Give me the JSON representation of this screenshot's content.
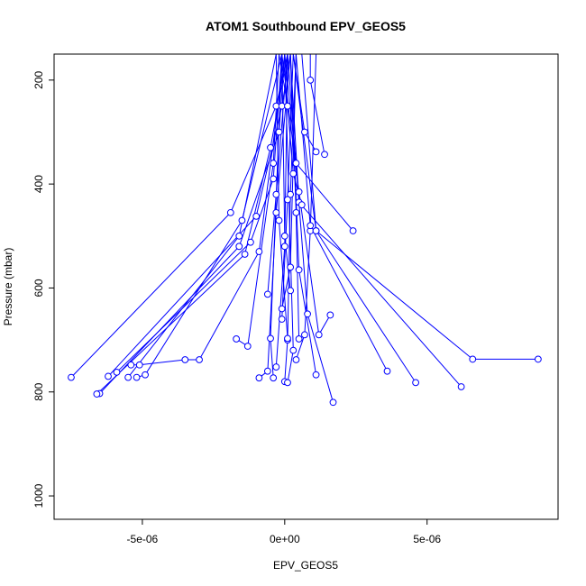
{
  "chart_data": {
    "type": "line",
    "title": "ATOM1 Southbound EPV_GEOS5",
    "xlabel": "EPV_GEOS5",
    "ylabel": "Pressure (mbar)",
    "xlim": [
      -8.1e-06,
      9.6e-06
    ],
    "ylim": [
      1045,
      150
    ],
    "y_inverted": true,
    "xticks": [
      {
        "value": -5e-06,
        "label": "-5e-06"
      },
      {
        "value": 0,
        "label": "0e+00"
      },
      {
        "value": 5e-06,
        "label": "5e-06"
      }
    ],
    "yticks": [
      {
        "value": 200,
        "label": "200"
      },
      {
        "value": 400,
        "label": "400"
      },
      {
        "value": 600,
        "label": "600"
      },
      {
        "value": 800,
        "label": "800"
      },
      {
        "value": 1000,
        "label": "1000"
      }
    ],
    "series_color": "#0000ff",
    "marker": "open-circle",
    "grid": false,
    "series": [
      {
        "x": [
          -7.5e-06,
          -1.9e-06,
          -3e-07,
          1e-07,
          3e-07
        ],
        "y": [
          772,
          455,
          250,
          150,
          100
        ]
      },
      {
        "x": [
          -6.5e-06,
          -1.6e-06,
          -2e-07,
          0.0
        ],
        "y": [
          803,
          520,
          300,
          150
        ]
      },
      {
        "x": [
          -6.6e-06,
          -1.4e-06,
          -5e-07,
          1e-07
        ],
        "y": [
          804,
          535,
          330,
          150
        ]
      },
      {
        "x": [
          -6.2e-06,
          -1e-06,
          -1e-07,
          2e-07
        ],
        "y": [
          770,
          462,
          250,
          150
        ]
      },
      {
        "x": [
          -5.9e-06,
          -1.2e-06,
          -4e-07,
          -1e-07
        ],
        "y": [
          762,
          512,
          390,
          150
        ]
      },
      {
        "x": [
          -5.4e-06,
          -5.1e-06,
          -3.5e-06,
          -3e-06,
          -9e-07,
          0.0
        ],
        "y": [
          748,
          748,
          738,
          738,
          530,
          150
        ]
      },
      {
        "x": [
          -5.5e-06,
          -1.6e-06,
          -3e-07
        ],
        "y": [
          772,
          500,
          150
        ]
      },
      {
        "x": [
          -5.2e-06,
          -4.9e-06,
          -1.5e-06,
          -1e-07
        ],
        "y": [
          772,
          767,
          470,
          150
        ]
      },
      {
        "x": [
          -1.7e-06,
          -1.3e-06,
          -4e-07,
          -2e-07
        ],
        "y": [
          698,
          712,
          360,
          150
        ]
      },
      {
        "x": [
          -9e-07,
          -6e-07,
          -3e-07,
          2e-07
        ],
        "y": [
          773,
          760,
          455,
          150
        ]
      },
      {
        "x": [
          -4e-07,
          -5e-07,
          -1e-07
        ],
        "y": [
          773,
          697,
          150
        ]
      },
      {
        "x": [
          0.0,
          1e-07,
          2e-07,
          4e-07
        ],
        "y": [
          780,
          700,
          420,
          150
        ]
      },
      {
        "x": [
          1e-07,
          3e-07,
          0.0
        ],
        "y": [
          782,
          720,
          150
        ]
      },
      {
        "x": [
          4e-07,
          7e-07,
          9e-07,
          1.1e-06
        ],
        "y": [
          738,
          690,
          490,
          150
        ]
      },
      {
        "x": [
          1.1e-06,
          5e-07,
          2e-07
        ],
        "y": [
          767,
          565,
          150
        ]
      },
      {
        "x": [
          1.7e-06,
          8e-07,
          1e-07
        ],
        "y": [
          820,
          650,
          150
        ]
      },
      {
        "x": [
          1.6e-06,
          1.2e-06,
          5e-07,
          -1e-07
        ],
        "y": [
          652,
          690,
          415,
          150
        ]
      },
      {
        "x": [
          3.6e-06,
          9e-07,
          4e-07
        ],
        "y": [
          760,
          480,
          150
        ]
      },
      {
        "x": [
          4.6e-06,
          1.1e-06,
          6e-07
        ],
        "y": [
          782,
          490,
          150
        ]
      },
      {
        "x": [
          6.2e-06,
          5e-07,
          2e-07
        ],
        "y": [
          790,
          435,
          150
        ]
      },
      {
        "x": [
          8.9e-06,
          6.6e-06,
          1.1e-06,
          3e-07
        ],
        "y": [
          737,
          737,
          490,
          150
        ]
      },
      {
        "x": [
          2.4e-06,
          4e-07,
          0.0
        ],
        "y": [
          490,
          360,
          150
        ]
      },
      {
        "x": [
          1.1e-06,
          7e-07,
          3e-07
        ],
        "y": [
          338,
          300,
          150
        ]
      },
      {
        "x": [
          1.4e-06,
          9e-07,
          9e-07
        ],
        "y": [
          343,
          200,
          150
        ]
      },
      {
        "x": [
          6e-07,
          3e-07,
          1e-07,
          -2e-07
        ],
        "y": [
          440,
          380,
          250,
          150
        ]
      },
      {
        "x": [
          -6e-07,
          -3e-07,
          1e-07
        ],
        "y": [
          612,
          420,
          150
        ]
      },
      {
        "x": [
          2e-07,
          0.0,
          -1e-07
        ],
        "y": [
          605,
          500,
          150
        ]
      },
      {
        "x": [
          -1e-07,
          2e-07,
          4e-07
        ],
        "y": [
          640,
          560,
          150
        ]
      },
      {
        "x": [
          5e-07,
          4e-07,
          2e-07
        ],
        "y": [
          698,
          455,
          150
        ]
      },
      {
        "x": [
          1e-07,
          -2e-07,
          -3e-07
        ],
        "y": [
          697,
          470,
          150
        ]
      },
      {
        "x": [
          -3e-07,
          0.0,
          1e-07
        ],
        "y": [
          752,
          520,
          150
        ]
      },
      {
        "x": [
          -1e-07,
          1e-07,
          3e-07
        ],
        "y": [
          660,
          430,
          150
        ]
      }
    ]
  }
}
